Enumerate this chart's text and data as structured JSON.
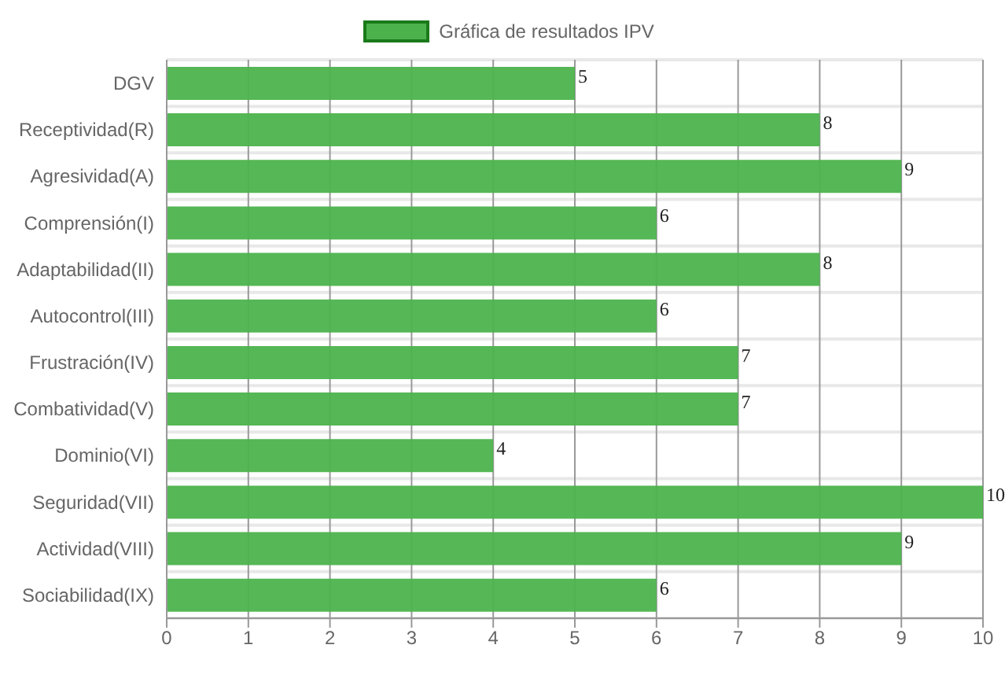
{
  "chart_data": {
    "type": "bar",
    "orientation": "horizontal",
    "categories": [
      "DGV",
      "Receptividad(R)",
      "Agresividad(A)",
      "Comprensión(I)",
      "Adaptabilidad(II)",
      "Autocontrol(III)",
      "Frustración(IV)",
      "Combatividad(V)",
      "Dominio(VI)",
      "Seguridad(VII)",
      "Actividad(VIII)",
      "Sociabilidad(IX)"
    ],
    "series": [
      {
        "name": "Gráfica de resultados IPV",
        "color": "#4cb34c",
        "values": [
          5,
          8,
          9,
          6,
          8,
          6,
          7,
          7,
          4,
          10,
          9,
          6
        ]
      }
    ],
    "xlim": [
      0,
      10
    ],
    "xticks": [
      0,
      1,
      2,
      3,
      4,
      5,
      6,
      7,
      8,
      9,
      10
    ],
    "grid": true,
    "legend": "top",
    "data_labels": true
  }
}
